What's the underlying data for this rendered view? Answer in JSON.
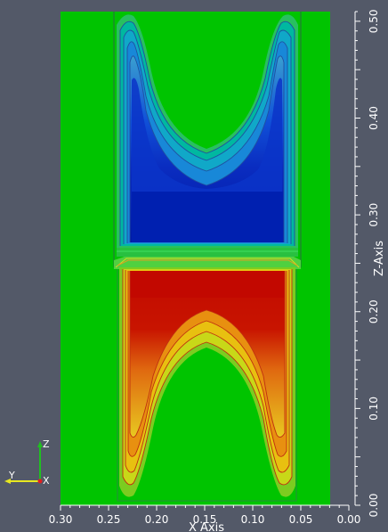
{
  "chart_data": {
    "type": "heatmap",
    "x_axis": {
      "label": "X Axis",
      "ticks": [
        "0.30",
        "0.25",
        "0.20",
        "0.15",
        "0.10",
        "0.05",
        "0.00"
      ],
      "range": [
        0.3,
        0.0
      ]
    },
    "z_axis": {
      "label": "Z-Axis",
      "ticks": [
        "0.00",
        "0.10",
        "0.20",
        "0.30",
        "0.40",
        "0.50"
      ],
      "range": [
        0.0,
        0.51
      ]
    },
    "orientation_triad": {
      "up": "Z",
      "left": "Y",
      "out": "X"
    },
    "colormap": [
      "#0018a8",
      "#00c8c8",
      "#00c800",
      "#e8e800",
      "#c80000"
    ],
    "regions": [
      {
        "name": "negative-lobe",
        "color": "#0018a8",
        "x_range": [
          0.225,
          0.065
        ],
        "z_range": [
          0.27,
          0.5
        ]
      },
      {
        "name": "positive-lobe",
        "color": "#c80000",
        "x_range": [
          0.225,
          0.065
        ],
        "z_range": [
          0.01,
          0.24
        ]
      }
    ],
    "grid": false
  }
}
